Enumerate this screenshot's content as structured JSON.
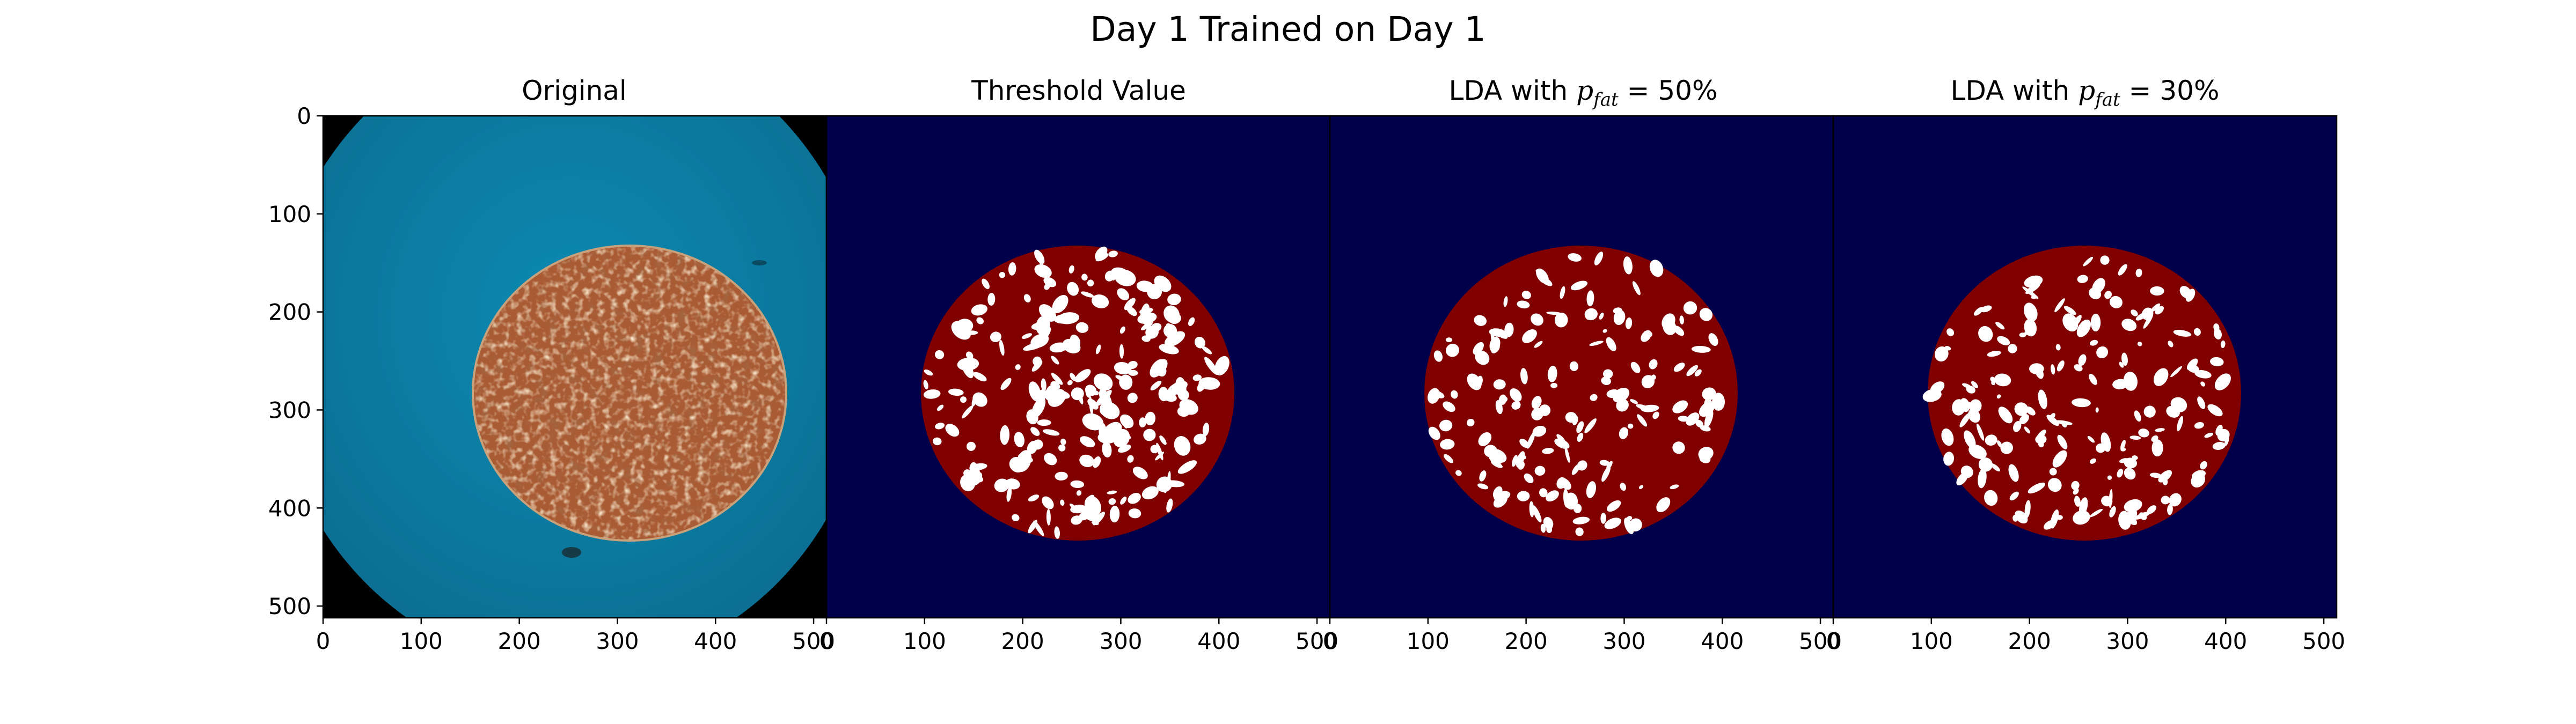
{
  "figure": {
    "title": "Day 1 Trained on Day 1"
  },
  "panels": [
    {
      "title_prefix": "Original",
      "title_var": "",
      "title_sub": "",
      "title_suffix": ""
    },
    {
      "title_prefix": "Threshold Value",
      "title_var": "",
      "title_sub": "",
      "title_suffix": ""
    },
    {
      "title_prefix": "LDA with ",
      "title_var": "p",
      "title_sub": "fat",
      "title_suffix": " = 50%"
    },
    {
      "title_prefix": "LDA with ",
      "title_var": "p",
      "title_sub": "fat",
      "title_suffix": " = 30%"
    }
  ],
  "axes": {
    "x_ticks": [
      "0",
      "100",
      "200",
      "300",
      "400",
      "500"
    ],
    "y_ticks": [
      "0",
      "100",
      "200",
      "300",
      "400",
      "500"
    ],
    "x_tick_values": [
      0,
      100,
      200,
      300,
      400,
      500
    ],
    "y_tick_values": [
      0,
      100,
      200,
      300,
      400,
      500
    ],
    "range": [
      0,
      512
    ]
  },
  "colors": {
    "background_dish": "#0f7fa6",
    "image_border": "#000000",
    "sample_meat": "#a95b33",
    "mask_background": "#00004a",
    "mask_meat": "#800000",
    "mask_fat": "#ffffff"
  }
}
